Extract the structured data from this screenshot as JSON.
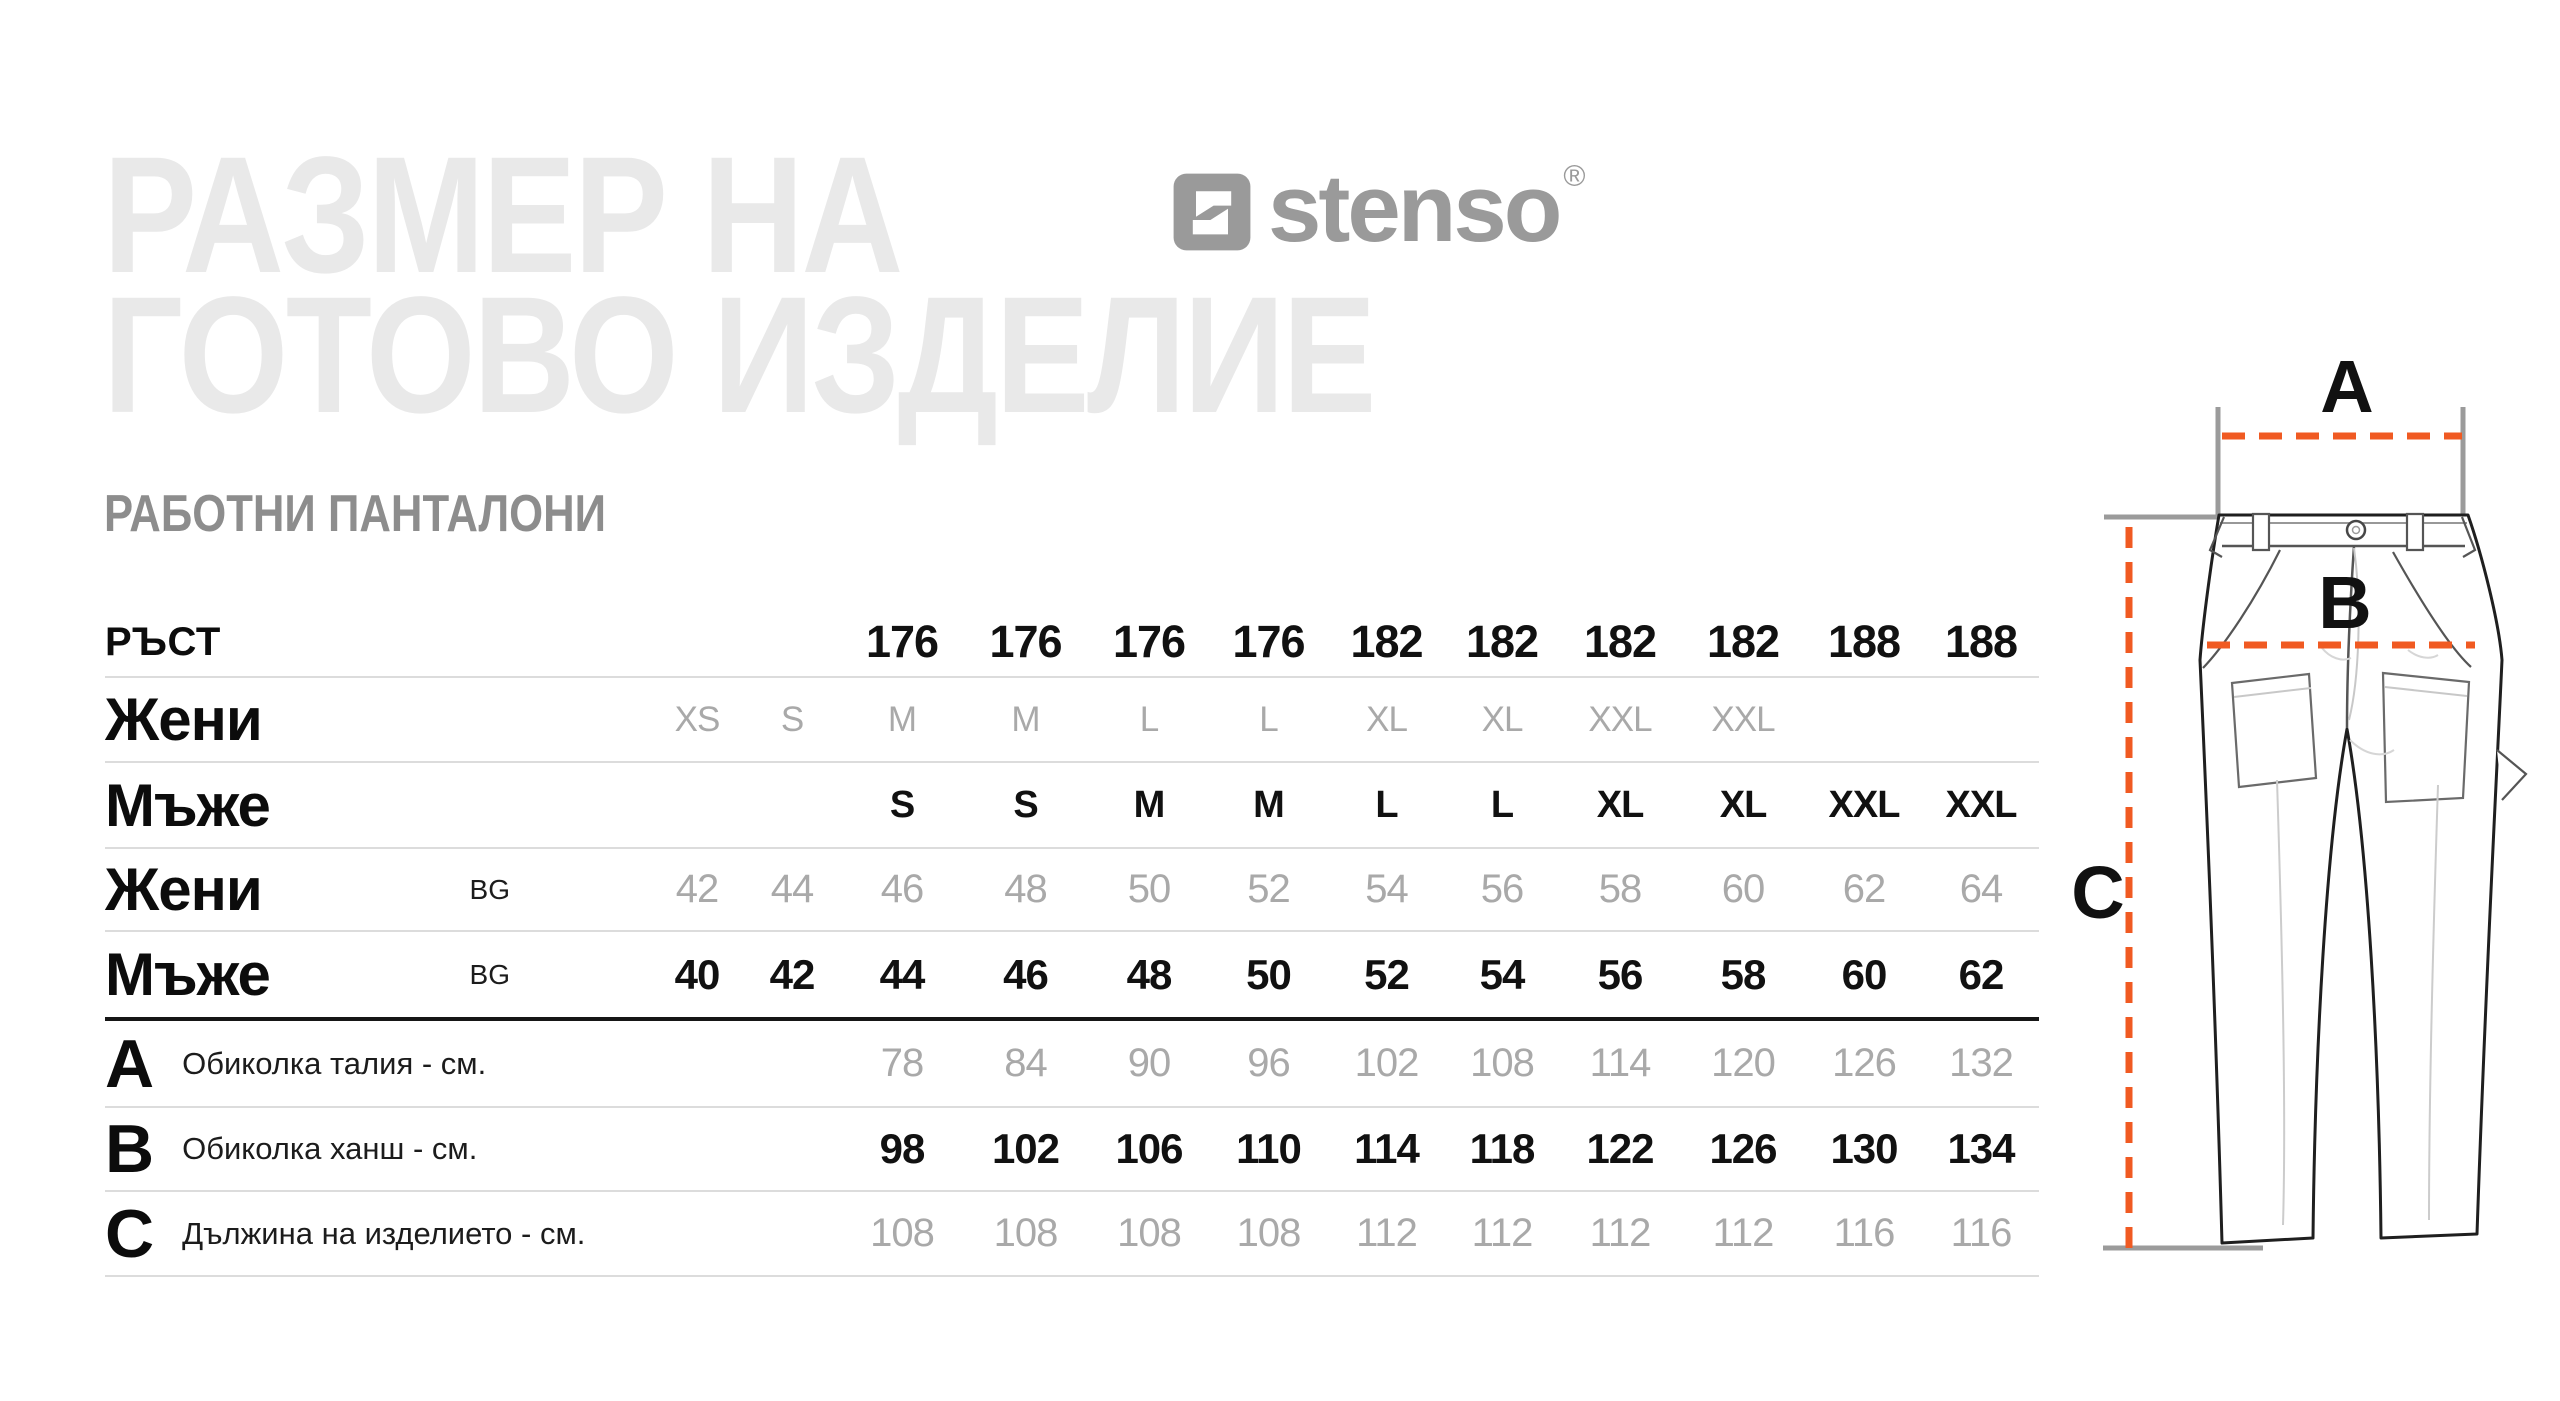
{
  "watermark": {
    "line1": "РАЗМЕР НА",
    "line2": "ГОТОВО ИЗДЕЛИЕ"
  },
  "brand": {
    "name": "stenso",
    "registered_mark": "®",
    "icon": "stenso-s-logo",
    "color": "#9a9a9a"
  },
  "subtitle": "РАБОТНИ ПАНТАЛОНИ",
  "colors": {
    "text_strong": "#111111",
    "text_muted": "#a9a9a9",
    "watermark": "#e9e9e9",
    "subtitle_gray": "#8d8d8d",
    "border_light": "#dcdcdc",
    "border_dark": "#161616",
    "accent_orange": "#f05a22",
    "guide_gray": "#9b9b9b"
  },
  "table": {
    "rows": [
      {
        "label": "РЪСТ",
        "sublabel": "",
        "description": "",
        "values": [
          "",
          "",
          "176",
          "176",
          "176",
          "176",
          "182",
          "182",
          "182",
          "182",
          "188",
          "188"
        ],
        "emphasis": "strong"
      },
      {
        "label": "Жени",
        "sublabel": "",
        "description": "",
        "values": [
          "XS",
          "S",
          "M",
          "M",
          "L",
          "L",
          "XL",
          "XL",
          "XXL",
          "XXL",
          "",
          ""
        ],
        "emphasis": "muted"
      },
      {
        "label": "Мъже",
        "sublabel": "",
        "description": "",
        "values": [
          "",
          "",
          "S",
          "S",
          "M",
          "M",
          "L",
          "L",
          "XL",
          "XL",
          "XXL",
          "XXL"
        ],
        "emphasis": "strong"
      },
      {
        "label": "Жени",
        "sublabel": "BG",
        "description": "",
        "values": [
          "42",
          "44",
          "46",
          "48",
          "50",
          "52",
          "54",
          "56",
          "58",
          "60",
          "62",
          "64"
        ],
        "emphasis": "muted"
      },
      {
        "label": "Мъже",
        "sublabel": "BG",
        "description": "",
        "values": [
          "40",
          "42",
          "44",
          "46",
          "48",
          "50",
          "52",
          "54",
          "56",
          "58",
          "60",
          "62"
        ],
        "emphasis": "strong"
      },
      {
        "label": "A",
        "sublabel": "",
        "description": "Обиколка талия - см.",
        "values": [
          "",
          "",
          "78",
          "84",
          "90",
          "96",
          "102",
          "108",
          "114",
          "120",
          "126",
          "132"
        ],
        "emphasis": "muted"
      },
      {
        "label": "B",
        "sublabel": "",
        "description": "Обиколка ханш - см.",
        "values": [
          "",
          "",
          "98",
          "102",
          "106",
          "110",
          "114",
          "118",
          "122",
          "126",
          "130",
          "134"
        ],
        "emphasis": "strong"
      },
      {
        "label": "C",
        "sublabel": "",
        "description": "Дължина на изделието - см.",
        "values": [
          "",
          "",
          "108",
          "108",
          "108",
          "108",
          "112",
          "112",
          "112",
          "112",
          "116",
          "116"
        ],
        "emphasis": "muted"
      }
    ]
  },
  "diagram": {
    "label_a": "A",
    "label_b": "B",
    "label_c": "C"
  }
}
